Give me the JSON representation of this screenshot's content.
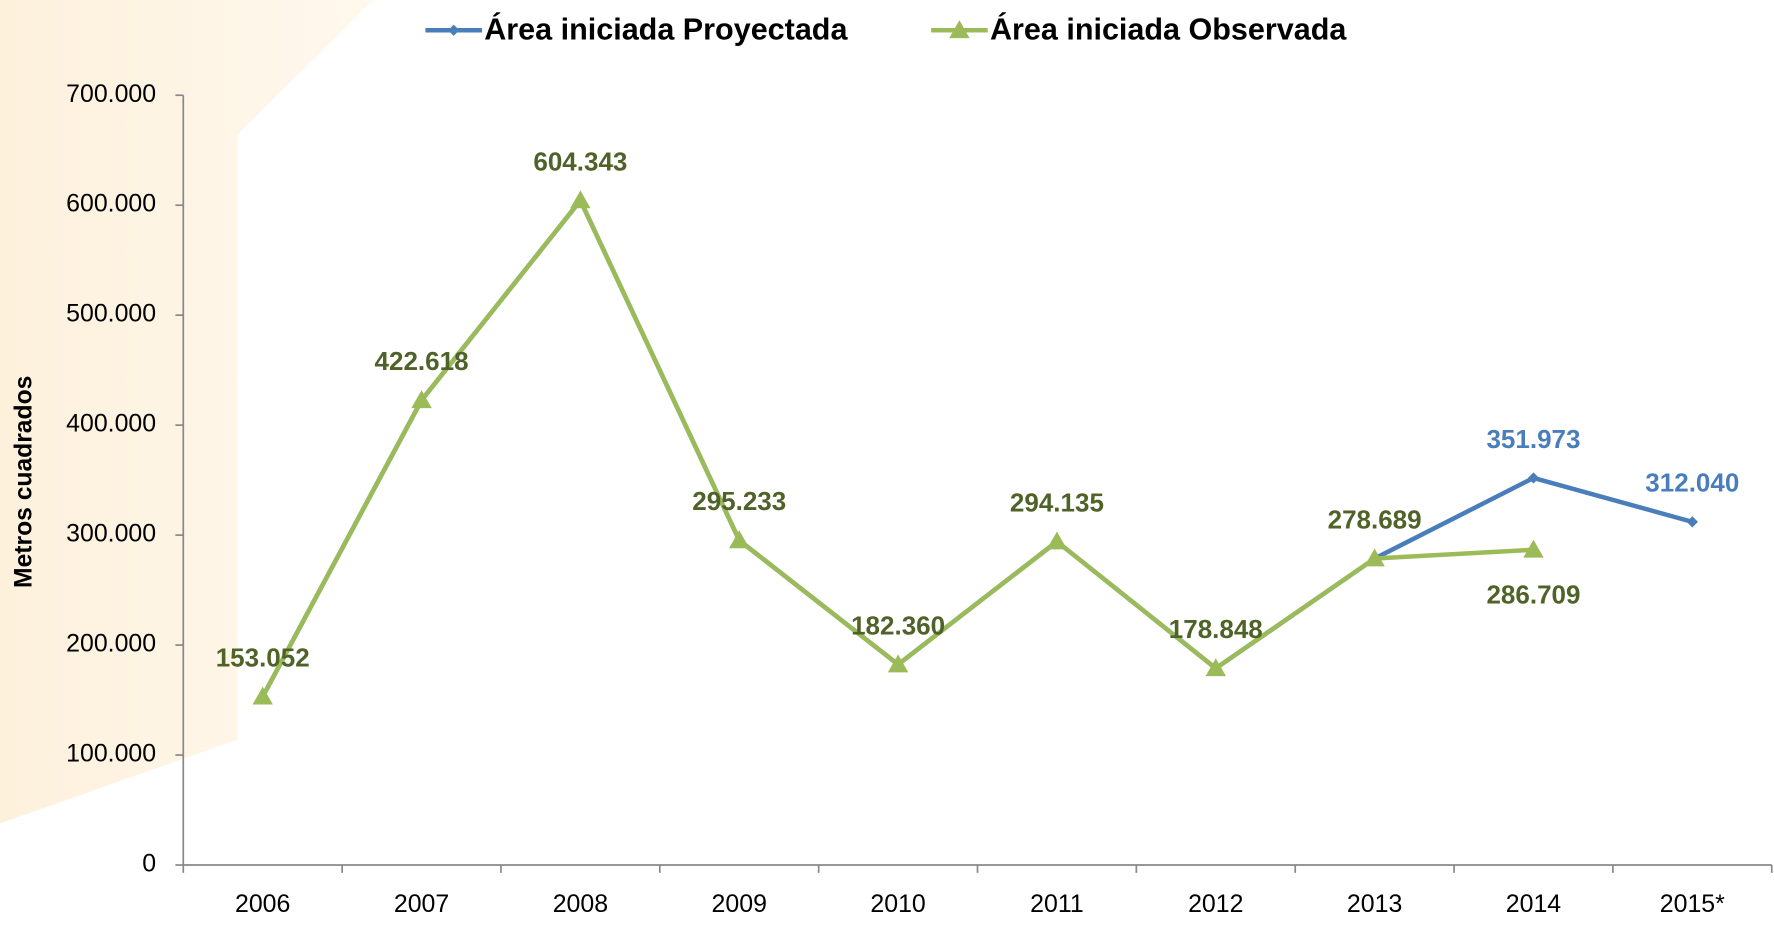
{
  "chart_data": {
    "type": "line",
    "y_axis_label": "Metros cuadrados",
    "categories": [
      "2006",
      "2007",
      "2008",
      "2009",
      "2010",
      "2011",
      "2012",
      "2013",
      "2014",
      "2015*"
    ],
    "series": [
      {
        "name": "Área iniciada Proyectada",
        "color": "#4a7ebb",
        "values": [
          153052,
          422618,
          604343,
          295233,
          182360,
          294135,
          178848,
          278689,
          351973,
          312040
        ],
        "value_labels": [
          null,
          null,
          null,
          null,
          null,
          null,
          null,
          null,
          "351.973",
          "312.040"
        ]
      },
      {
        "name": "Área iniciada Observada",
        "color": "#9bbb59",
        "values": [
          153052,
          422618,
          604343,
          295233,
          182360,
          294135,
          178848,
          278689,
          286709,
          null
        ],
        "value_labels": [
          "153.052",
          "422.618",
          "604.343",
          "295.233",
          "182.360",
          "294.135",
          "178.848",
          "278.689",
          "286.709",
          null
        ]
      }
    ],
    "ylim": [
      0,
      700000
    ],
    "yticks": [
      0,
      {
        "value": 100000,
        "label": "100.000"
      },
      {
        "value": 200000,
        "label": "200.000"
      },
      {
        "value": 300000,
        "label": "300.000"
      },
      {
        "value": 400000,
        "label": "400.000"
      },
      {
        "value": 500000,
        "label": "500.000"
      },
      {
        "value": 600000,
        "label": "600.000"
      },
      {
        "value": 700000,
        "label": "700.000"
      }
    ],
    "legend": "top"
  }
}
